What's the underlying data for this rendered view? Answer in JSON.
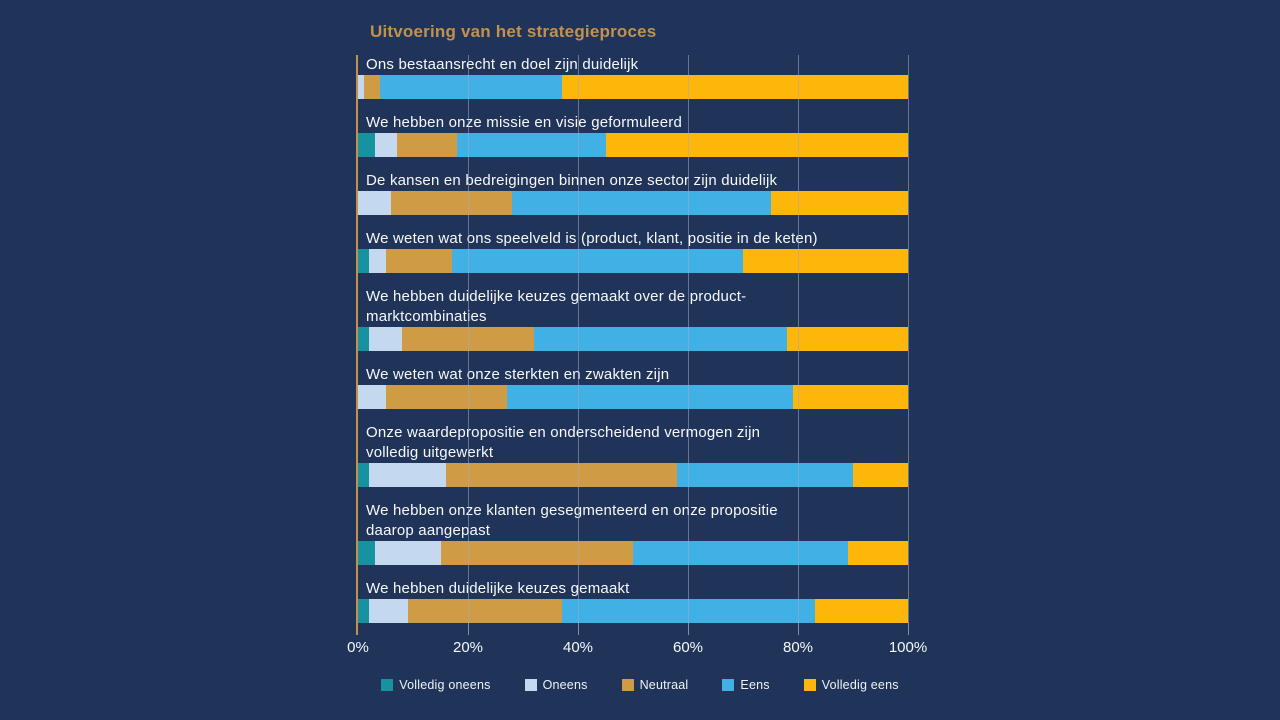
{
  "title": "Uitvoering van het strategieproces",
  "colors": {
    "background": "#203459",
    "title": "#c3914c",
    "axis_line": "#c3914c",
    "gridline": "#9eacc4",
    "label_text": "#f6f8fc"
  },
  "chart_data": {
    "type": "bar",
    "orientation": "horizontal",
    "stacked": true,
    "unit": "percent",
    "title": "Uitvoering van het strategieproces",
    "xlim": [
      0,
      100
    ],
    "x_ticks": [
      "0%",
      "20%",
      "40%",
      "60%",
      "80%",
      "100%"
    ],
    "grid": true,
    "legend_position": "bottom",
    "categories": [
      "Ons bestaansrecht en doel zijn duidelijk",
      "We hebben onze missie en visie geformuleerd",
      "De kansen en bedreigingen binnen onze sector zijn duidelijk",
      "We weten wat ons speelveld is (product, klant, positie in de keten)",
      "We hebben duidelijke keuzes gemaakt over de product-\nmarktcombinaties",
      "We weten wat onze sterkten en zwakten zijn",
      "Onze waardepropositie en onderscheidend vermogen zijn\nvolledig uitgewerkt",
      "We hebben onze klanten gesegmenteerd en onze propositie\ndaarop aangepast",
      "We hebben duidelijke keuzes gemaakt"
    ],
    "series": [
      {
        "name": "Volledig oneens",
        "color": "#16939f",
        "values": [
          0,
          3,
          0,
          2,
          2,
          0,
          2,
          3,
          2
        ]
      },
      {
        "name": "Oneens",
        "color": "#c4d8f0",
        "values": [
          1,
          4,
          6,
          3,
          6,
          5,
          14,
          12,
          7
        ]
      },
      {
        "name": "Neutraal",
        "color": "#d09b45",
        "values": [
          3,
          11,
          22,
          12,
          24,
          22,
          42,
          35,
          28
        ]
      },
      {
        "name": "Eens",
        "color": "#41b0e5",
        "values": [
          33,
          27,
          47,
          53,
          46,
          52,
          32,
          39,
          46
        ]
      },
      {
        "name": "Volledig eens",
        "color": "#fdb70a",
        "values": [
          63,
          55,
          25,
          30,
          22,
          21,
          10,
          11,
          17
        ]
      }
    ]
  }
}
